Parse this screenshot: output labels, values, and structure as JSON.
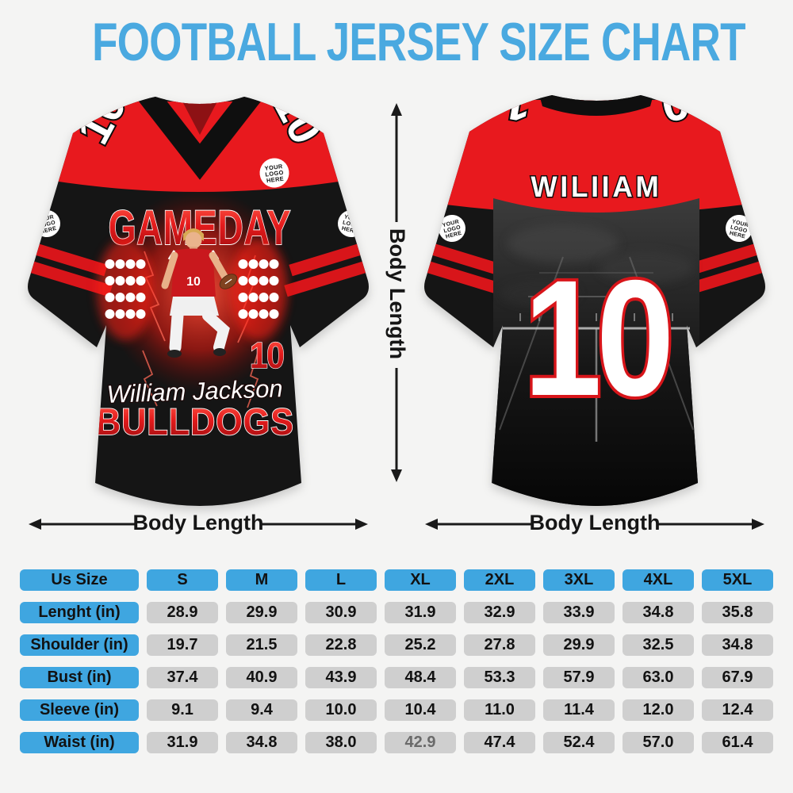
{
  "title": "FOOTBALL JERSEY SIZE CHART",
  "colors": {
    "title_blue": "#4aa9e0",
    "table_blue": "#3fa6e0",
    "cell_gray": "#cfcfcf",
    "jersey_red": "#e8191e",
    "jersey_black": "#151515",
    "background": "#f4f4f3"
  },
  "logo_badge_lines": [
    "YOUR",
    "LOGO",
    "HERE"
  ],
  "jersey_front": {
    "view": "front",
    "shoulder_number": "10",
    "graphic_title": "GAMEDAY",
    "player_jersey_number": "10",
    "graphic_number": "10",
    "player_name": "William Jackson",
    "team_name": "BULLDOGS"
  },
  "jersey_back": {
    "view": "back",
    "name": "WILIIAM",
    "number": "10",
    "shoulder_number": "10"
  },
  "measure_labels": {
    "vertical": "Body Length",
    "front_bottom": "Body Length",
    "back_bottom": "Body Length"
  },
  "chart_data": {
    "type": "table",
    "title": "FOOTBALL JERSEY SIZE CHART",
    "columns": [
      "Us Size",
      "S",
      "M",
      "L",
      "XL",
      "2XL",
      "3XL",
      "4XL",
      "5XL"
    ],
    "rows": [
      {
        "label": "Lenght (in)",
        "values": [
          "28.9",
          "29.9",
          "30.9",
          "31.9",
          "32.9",
          "33.9",
          "34.8",
          "35.8"
        ]
      },
      {
        "label": "Shoulder (in)",
        "values": [
          "19.7",
          "21.5",
          "22.8",
          "25.2",
          "27.8",
          "29.9",
          "32.5",
          "34.8"
        ]
      },
      {
        "label": "Bust (in)",
        "values": [
          "37.4",
          "40.9",
          "43.9",
          "48.4",
          "53.3",
          "57.9",
          "63.0",
          "67.9"
        ]
      },
      {
        "label": "Sleeve (in)",
        "values": [
          "9.1",
          "9.4",
          "10.0",
          "10.4",
          "11.0",
          "11.4",
          "12.0",
          "12.4"
        ]
      },
      {
        "label": "Waist (in)",
        "values": [
          "31.9",
          "34.8",
          "38.0",
          "42.9",
          "47.4",
          "52.4",
          "57.0",
          "61.4"
        ]
      }
    ],
    "muted_cell": {
      "row": 4,
      "col": 3,
      "row_label": "Waist (in)",
      "column": "XL",
      "value": "42.9"
    }
  }
}
